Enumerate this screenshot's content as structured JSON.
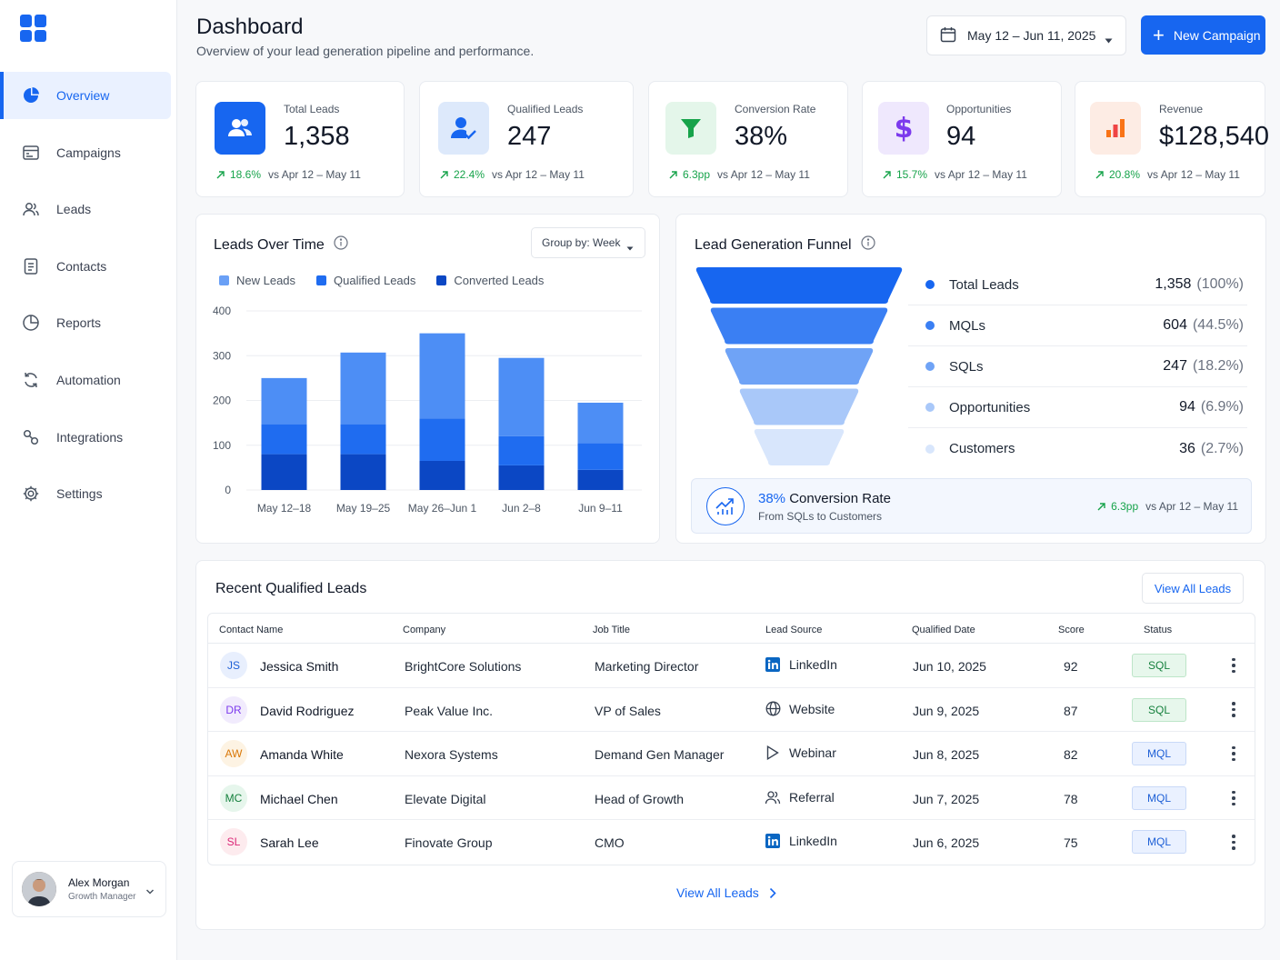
{
  "sidebar": {
    "items": [
      {
        "label": "Overview",
        "icon": "pie-chart-icon",
        "active": true
      },
      {
        "label": "Campaigns",
        "icon": "browser-window-icon"
      },
      {
        "label": "Leads",
        "icon": "users-icon"
      },
      {
        "label": "Contacts",
        "icon": "address-book-icon"
      },
      {
        "label": "Reports",
        "icon": "reports-pie-icon"
      },
      {
        "label": "Automation",
        "icon": "refresh-cycle-icon"
      },
      {
        "label": "Integrations",
        "icon": "integration-link-icon"
      },
      {
        "label": "Settings",
        "icon": "gear-icon"
      }
    ],
    "user": {
      "name": "Alex Morgan",
      "role": "Growth Manager"
    }
  },
  "header": {
    "title": "Dashboard",
    "subtitle": "Overview of your lead generation pipeline and performance.",
    "date_range": "May 12 – Jun 11, 2025",
    "new_campaign_label": "New Campaign",
    "plus": "+"
  },
  "kpis": [
    {
      "label": "Total Leads",
      "value": "1,358",
      "change": "18.6%",
      "compare": "vs Apr 12 – May 11",
      "icon": "users-icon",
      "accent": "#1766f0"
    },
    {
      "label": "Qualified Leads",
      "value": "247",
      "change": "22.4%",
      "compare": "vs Apr 12 – May 11",
      "icon": "user-check-icon",
      "accent": "#dde9fb"
    },
    {
      "label": "Conversion Rate",
      "value": "38%",
      "change": "6.3pp",
      "compare": "vs Apr 12 – May 11",
      "icon": "funnel-icon",
      "accent": "#e4f6ea"
    },
    {
      "label": "Opportunities",
      "value": "94",
      "change": "15.7%",
      "compare": "vs Apr 12 – May 11",
      "icon": "dollar-icon",
      "accent": "#efe8fd"
    },
    {
      "label": "Revenue",
      "value": "$128,540",
      "change": "20.8%",
      "compare": "vs Apr 12 – May 11",
      "icon": "bar-chart-icon",
      "accent": "#fdece4"
    }
  ],
  "leads_over_time": {
    "title": "Leads Over Time",
    "group_by": "Group by: Week",
    "legend": [
      {
        "name": "New Leads",
        "color": "#4d8ef5"
      },
      {
        "name": "Qualified Leads",
        "color": "#1f6cf0"
      },
      {
        "name": "Converted Leads",
        "color": "#0b47c4"
      }
    ]
  },
  "chart_data": {
    "type": "bar",
    "stacked": true,
    "categories": [
      "May 12–18",
      "May 19–25",
      "May 26–Jun 1",
      "Jun 2–8",
      "Jun 9–11"
    ],
    "series": [
      {
        "name": "Converted Leads",
        "values": [
          80,
          80,
          65,
          55,
          45
        ]
      },
      {
        "name": "Qualified Leads",
        "values": [
          67,
          67,
          95,
          65,
          60
        ]
      },
      {
        "name": "New Leads",
        "values": [
          103,
          160,
          190,
          175,
          90
        ]
      }
    ],
    "yticks": [
      "0",
      "100",
      "200",
      "300",
      "400"
    ],
    "ylim": [
      0,
      400
    ],
    "grid": true,
    "legend_position": "top-left"
  },
  "funnel": {
    "title": "Lead Generation Funnel",
    "stages": [
      {
        "name": "Total Leads",
        "value": "1,358",
        "pct": "(100%)",
        "color": "#1766f0"
      },
      {
        "name": "MQLs",
        "value": "604",
        "pct": "(44.5%)",
        "color": "#3a7ff3"
      },
      {
        "name": "SQLs",
        "value": "247",
        "pct": "(18.2%)",
        "color": "#6fa3f6"
      },
      {
        "name": "Opportunities",
        "value": "94",
        "pct": "(6.9%)",
        "color": "#a9c8f9"
      },
      {
        "name": "Customers",
        "value": "36",
        "pct": "(2.7%)",
        "color": "#d8e6fc"
      }
    ],
    "conversion": {
      "rate": "38%",
      "label": "Conversion Rate",
      "sub": "From SQLs to Customers",
      "change": "6.3pp",
      "compare": "vs Apr 12 – May 11"
    }
  },
  "recent": {
    "title": "Recent Qualified Leads",
    "view_all": "View All Leads",
    "columns": [
      "Contact Name",
      "Company",
      "Job Title",
      "Lead Source",
      "Qualified Date",
      "Score",
      "Status"
    ],
    "rows": [
      {
        "initials": "JS",
        "name": "Jessica Smith",
        "company": "BrightCore Solutions",
        "job": "Marketing Director",
        "source": "LinkedIn",
        "source_icon": "linkedin-icon",
        "date": "Jun 10, 2025",
        "score": "92",
        "status": "SQL",
        "av_bg": "#e8effd",
        "av_fg": "#1d5fd6"
      },
      {
        "initials": "DR",
        "name": "David Rodriguez",
        "company": "Peak Value Inc.",
        "job": "VP of Sales",
        "source": "Website",
        "source_icon": "globe-icon",
        "date": "Jun 9, 2025",
        "score": "87",
        "status": "SQL",
        "av_bg": "#f1ebfd",
        "av_fg": "#7c3aed"
      },
      {
        "initials": "AW",
        "name": "Amanda White",
        "company": "Nexora Systems",
        "job": "Demand Gen Manager",
        "source": "Webinar",
        "source_icon": "play-icon",
        "date": "Jun 8, 2025",
        "score": "82",
        "status": "MQL",
        "av_bg": "#fdf3e3",
        "av_fg": "#d97706"
      },
      {
        "initials": "MC",
        "name": "Michael Chen",
        "company": "Elevate Digital",
        "job": "Head of Growth",
        "source": "Referral",
        "source_icon": "referral-users-icon",
        "date": "Jun 7, 2025",
        "score": "78",
        "status": "MQL",
        "av_bg": "#e6f6ec",
        "av_fg": "#15803d"
      },
      {
        "initials": "SL",
        "name": "Sarah Lee",
        "company": "Finovate Group",
        "job": "CMO",
        "source": "LinkedIn",
        "source_icon": "linkedin-icon",
        "date": "Jun 6, 2025",
        "score": "75",
        "status": "MQL",
        "av_bg": "#fdebee",
        "av_fg": "#db2777"
      }
    ]
  }
}
